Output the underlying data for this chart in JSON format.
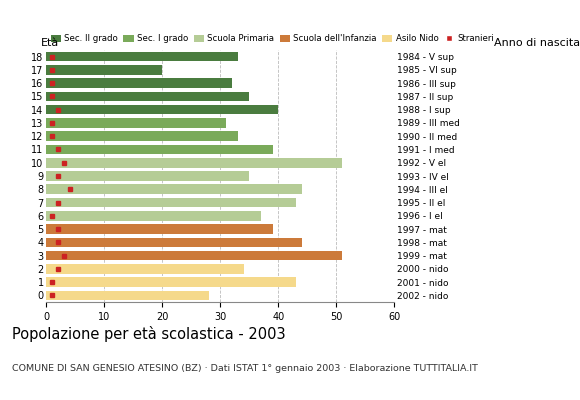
{
  "ages": [
    18,
    17,
    16,
    15,
    14,
    13,
    12,
    11,
    10,
    9,
    8,
    7,
    6,
    5,
    4,
    3,
    2,
    1,
    0
  ],
  "years": [
    "1984 - V sup",
    "1985 - VI sup",
    "1986 - III sup",
    "1987 - II sup",
    "1988 - I sup",
    "1989 - III med",
    "1990 - II med",
    "1991 - I med",
    "1992 - V el",
    "1993 - IV el",
    "1994 - III el",
    "1995 - II el",
    "1996 - I el",
    "1997 - mat",
    "1998 - mat",
    "1999 - mat",
    "2000 - nido",
    "2001 - nido",
    "2002 - nido"
  ],
  "values": [
    33,
    20,
    32,
    35,
    40,
    31,
    33,
    39,
    51,
    35,
    44,
    43,
    37,
    39,
    44,
    51,
    34,
    43,
    28
  ],
  "stranieri": [
    1,
    1,
    1,
    1,
    2,
    1,
    1,
    2,
    3,
    2,
    4,
    2,
    1,
    2,
    2,
    3,
    2,
    1,
    1
  ],
  "bar_colors": [
    "#4a7c3f",
    "#4a7c3f",
    "#4a7c3f",
    "#4a7c3f",
    "#4a7c3f",
    "#7aaa5a",
    "#7aaa5a",
    "#7aaa5a",
    "#b5cc96",
    "#b5cc96",
    "#b5cc96",
    "#b5cc96",
    "#b5cc96",
    "#cc7a3a",
    "#cc7a3a",
    "#cc7a3a",
    "#f5d98b",
    "#f5d98b",
    "#f5d98b"
  ],
  "legend_labels": [
    "Sec. II grado",
    "Sec. I grado",
    "Scuola Primaria",
    "Scuola dell'Infanzia",
    "Asilo Nido",
    "Stranieri"
  ],
  "legend_colors": [
    "#4a7c3f",
    "#7aaa5a",
    "#b5cc96",
    "#cc7a3a",
    "#f5d98b",
    "#cc2222"
  ],
  "stranieri_color": "#cc2222",
  "title": "Popolazione per età scolastica - 2003",
  "subtitle": "COMUNE DI SAN GENESIO ATESINO (BZ) · Dati ISTAT 1° gennaio 2003 · Elaborazione TUTTITALIA.IT",
  "label_eta": "Età",
  "label_anno": "Anno di nascita",
  "xlim": [
    0,
    60
  ],
  "xticks": [
    0,
    10,
    20,
    30,
    40,
    50,
    60
  ],
  "background_color": "#ffffff",
  "grid_color": "#bbbbbb"
}
